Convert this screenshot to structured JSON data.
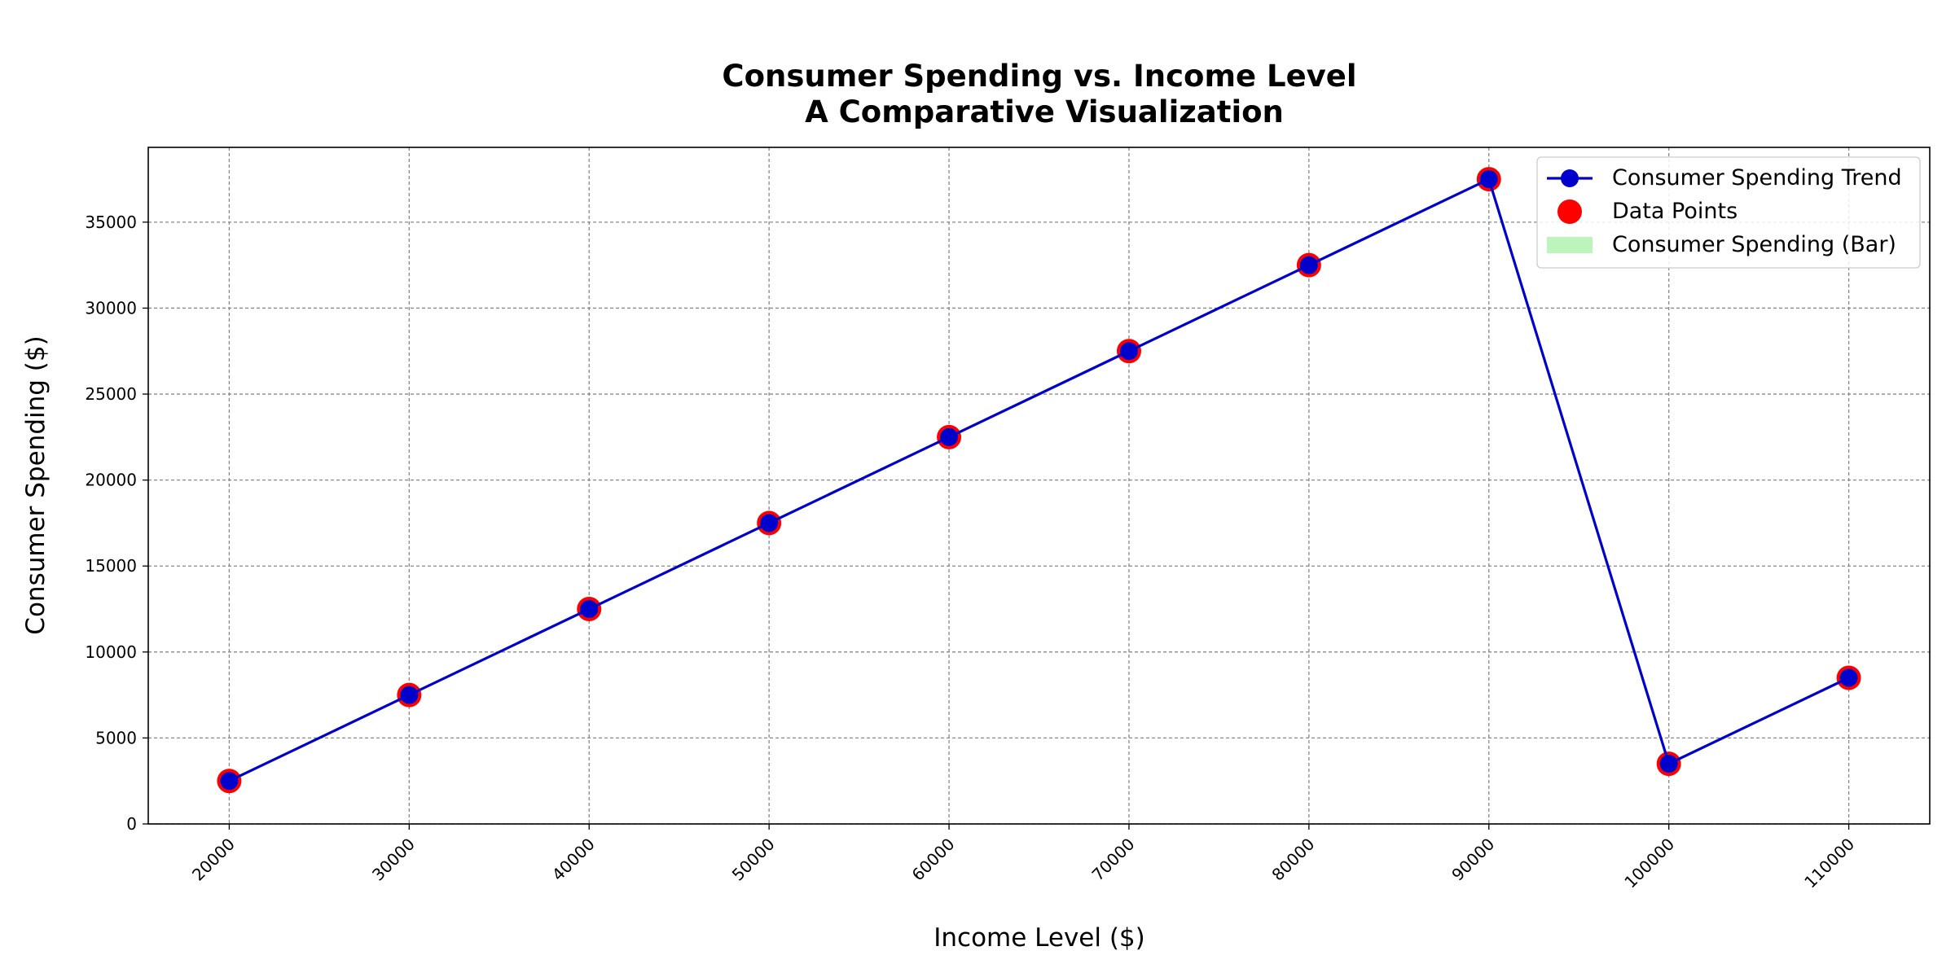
{
  "chart_data": {
    "type": "line",
    "title": "Consumer Spending vs. Income Level",
    "subtitle": "A Comparative Visualization",
    "x_label": "Income Level ($)",
    "y_label": "Consumer Spending ($)",
    "x": [
      20000,
      30000,
      40000,
      50000,
      60000,
      70000,
      80000,
      90000,
      100000,
      110000
    ],
    "series": [
      {
        "name": "Consumer Spending Trend",
        "color": "#0000cc",
        "values": [
          2500,
          7500,
          12500,
          17500,
          22500,
          27500,
          32500,
          37500,
          3500,
          8500
        ]
      },
      {
        "name": "Data Points",
        "color": "#ff0000",
        "values": [
          2500,
          7500,
          12500,
          17500,
          22500,
          27500,
          32500,
          37500,
          3500,
          8500
        ]
      },
      {
        "name": "Consumer Spending (Bar)",
        "color": "#90ee90",
        "values": [
          2500,
          7500,
          12500,
          17500,
          22500,
          27500,
          32500,
          37500,
          3500,
          8500
        ]
      }
    ],
    "xlim": [
      15500,
      114500
    ],
    "xticks": [
      20000,
      30000,
      40000,
      50000,
      60000,
      70000,
      80000,
      90000,
      100000,
      110000
    ],
    "ylim": [
      0,
      39350
    ],
    "yticks": [
      0,
      5000,
      10000,
      15000,
      20000,
      25000,
      30000,
      35000
    ],
    "grid": true,
    "legend": "upper right"
  }
}
